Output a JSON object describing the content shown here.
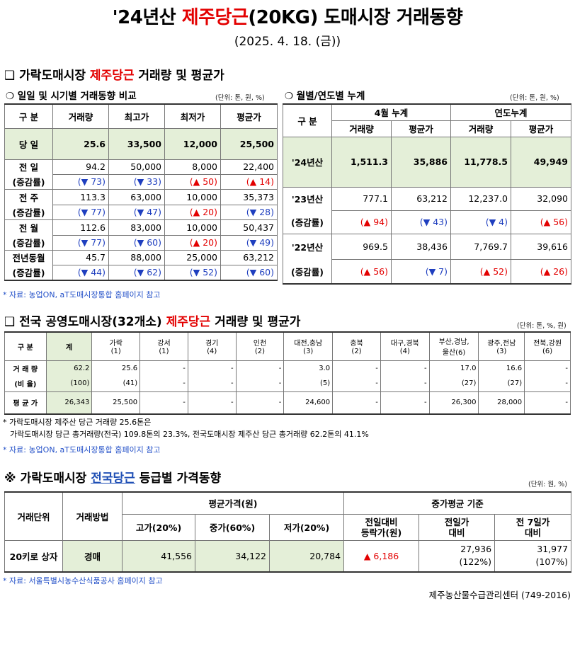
{
  "title": {
    "pre": "'24년산 ",
    "red": "제주당근",
    "post": "(20KG) 도매시장 거래동향"
  },
  "date": "(2025. 4. 18. (금))",
  "sec1": {
    "pre": "❑ 가락도매시장 ",
    "red": "제주당근",
    "post": " 거래량 및 평균가"
  },
  "sub1": "❍ 일일 및 시기별 거래동향 비교",
  "sub2": "❍ 월별/연도별 누계",
  "unit_a": "(단위: 톤, 원, %)",
  "unit_b": "(단위: 톤, 원, %)",
  "t1": {
    "headers": [
      "구 분",
      "거래량",
      "최고가",
      "최저가",
      "평균가"
    ],
    "today": {
      "label": "당 일",
      "vals": [
        "25.6",
        "33,500",
        "12,000",
        "25,500"
      ]
    },
    "rows": [
      {
        "label": "전 일",
        "vals": [
          "94.2",
          "50,000",
          "8,000",
          "22,400"
        ],
        "chg": [
          {
            "dir": "dn",
            "t": "(▼ 73)"
          },
          {
            "dir": "dn",
            "t": "(▼ 33)"
          },
          {
            "dir": "up",
            "t": "(▲ 50)"
          },
          {
            "dir": "up",
            "t": "(▲ 14)"
          }
        ]
      },
      {
        "label": "전 주",
        "vals": [
          "113.3",
          "63,000",
          "10,000",
          "35,373"
        ],
        "chg": [
          {
            "dir": "dn",
            "t": "(▼ 77)"
          },
          {
            "dir": "dn",
            "t": "(▼ 47)"
          },
          {
            "dir": "up",
            "t": "(▲ 20)"
          },
          {
            "dir": "dn",
            "t": "(▼ 28)"
          }
        ]
      },
      {
        "label": "전 월",
        "vals": [
          "112.6",
          "83,000",
          "10,000",
          "50,437"
        ],
        "chg": [
          {
            "dir": "dn",
            "t": "(▼ 77)"
          },
          {
            "dir": "dn",
            "t": "(▼ 60)"
          },
          {
            "dir": "up",
            "t": "(▲ 20)"
          },
          {
            "dir": "dn",
            "t": "(▼ 49)"
          }
        ]
      },
      {
        "label": "전년동월",
        "vals": [
          "45.7",
          "88,000",
          "25,000",
          "63,212"
        ],
        "chg": [
          {
            "dir": "dn",
            "t": "(▼ 44)"
          },
          {
            "dir": "dn",
            "t": "(▼ 62)"
          },
          {
            "dir": "dn",
            "t": "(▼ 52)"
          },
          {
            "dir": "dn",
            "t": "(▼ 60)"
          }
        ]
      }
    ],
    "chg_label": "(증감률)"
  },
  "t2": {
    "h_label": "구 분",
    "h_april": "4월 누계",
    "h_year": "연도누계",
    "h_sub": [
      "거래량",
      "평균가",
      "거래량",
      "평균가"
    ],
    "y24": {
      "label": "'24년산",
      "vals": [
        "1,511.3",
        "35,886",
        "11,778.5",
        "49,949"
      ]
    },
    "y23": {
      "label": "'23년산",
      "vals": [
        "777.1",
        "63,212",
        "12,237.0",
        "32,090"
      ],
      "chg": [
        {
          "dir": "up",
          "t": "(▲ 94)"
        },
        {
          "dir": "dn",
          "t": "(▼ 43)"
        },
        {
          "dir": "dn",
          "t": "(▼ 4)"
        },
        {
          "dir": "up",
          "t": "(▲ 56)"
        }
      ]
    },
    "y22": {
      "label": "'22년산",
      "vals": [
        "969.5",
        "38,436",
        "7,769.7",
        "39,616"
      ],
      "chg": [
        {
          "dir": "up",
          "t": "(▲ 56)"
        },
        {
          "dir": "dn",
          "t": "(▼ 7)"
        },
        {
          "dir": "up",
          "t": "(▲ 52)"
        },
        {
          "dir": "up",
          "t": "(▲ 26)"
        }
      ]
    },
    "chg_label": "(증감률)"
  },
  "src1": "* 자료: 농업ON, aT도매시장통합 홈페이지 참고",
  "sec2": {
    "pre": "❑ 전국 공영도매시장(32개소) ",
    "red": "제주당근",
    "post": " 거래량 및 평균가"
  },
  "unit_c": "(단위: 톤, %, 원)",
  "t3": {
    "headers": [
      [
        "구 분"
      ],
      [
        "계"
      ],
      [
        "가락",
        "(1)"
      ],
      [
        "강서",
        "(1)"
      ],
      [
        "경기",
        "(4)"
      ],
      [
        "인천",
        "(2)"
      ],
      [
        "대전,충남",
        "(3)"
      ],
      [
        "충북",
        "(2)"
      ],
      [
        "대구,경북",
        "(4)"
      ],
      [
        "부산,경남,",
        "울산(6)"
      ],
      [
        "광주,전남",
        "(3)"
      ],
      [
        "전북,강원",
        "(6)"
      ]
    ],
    "row_vol": {
      "label": "거 래 량",
      "vals": [
        "62.2",
        "25.6",
        "-",
        "-",
        "-",
        "3.0",
        "-",
        "-",
        "17.0",
        "16.6",
        "-"
      ]
    },
    "row_ratio": {
      "label": "(비 율)",
      "vals": [
        "(100)",
        "(41)",
        "-",
        "-",
        "-",
        "(5)",
        "-",
        "-",
        "(27)",
        "(27)",
        "-"
      ]
    },
    "row_price": {
      "label": "평 균 가",
      "vals": [
        "26,343",
        "25,500",
        "-",
        "-",
        "-",
        "24,600",
        "-",
        "-",
        "26,300",
        "28,000",
        "-"
      ]
    }
  },
  "note1": "* 가락도매시장 제주산 당근 거래량 25.6톤은",
  "note2": "가락도매시장 당근 총거래량(전국) 109.8톤의 23.3%, 전국도매시장 제주산 당근 총거래량 62.2톤의 41.1%",
  "src2": "* 자료: 농업ON, aT도매시장통합 홈페이지 참고",
  "sec3": {
    "pre": "※ 가락도매시장 ",
    "blue": "전국당근",
    "post": " 등급별 가격동향"
  },
  "unit_d": "(단위: 원, %)",
  "t4": {
    "h_unit": "거래단위",
    "h_method": "거래방법",
    "h_avg": "평균가격(원)",
    "h_mid": "중가평균 기준",
    "h_high": "고가(20%)",
    "h_middle": "중가(60%)",
    "h_low": "저가(20%)",
    "h_prev_diff": [
      "전일대비",
      "등락가(원)"
    ],
    "h_prev": [
      "전일가",
      "대비"
    ],
    "h_week": [
      "전 7일가",
      "대비"
    ],
    "row": {
      "unit": "20키로 상자",
      "method": "경매",
      "high": "41,556",
      "middle": "34,122",
      "low": "20,784",
      "diff": "▲ 6,186",
      "prev": "27,936",
      "prev_pct": "(122%)",
      "week": "31,977",
      "week_pct": "(107%)"
    }
  },
  "src3": "* 자료: 서울특별시농수산식품공사 홈페이지 참고",
  "footer": "제주농산물수급관리센터 (749-2016)"
}
